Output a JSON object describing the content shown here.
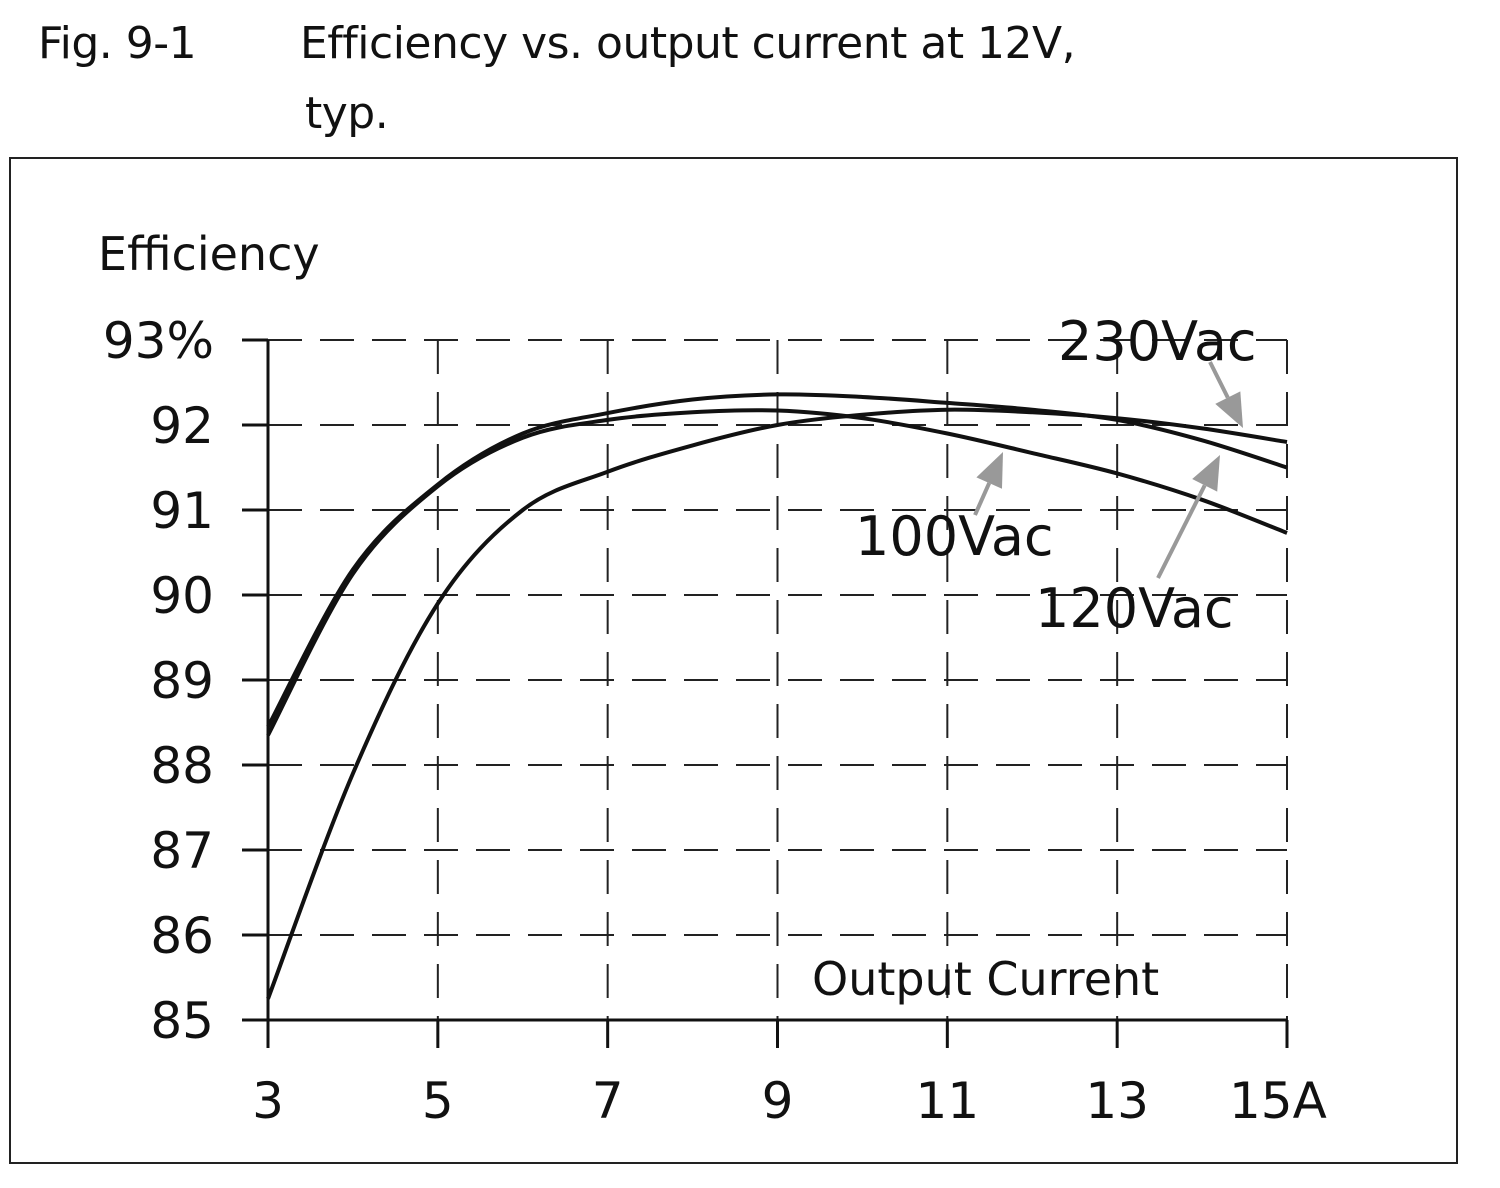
{
  "figure": {
    "number": "Fig. 9-1",
    "title_line1": "Efficiency vs. output current at 12V,",
    "title_line2": "typ."
  },
  "chart_data": {
    "type": "line",
    "title": "Efficiency vs. output current at 12V, typ.",
    "xlabel": "Output Current",
    "ylabel": "Efficiency",
    "xlim": [
      3,
      15
    ],
    "ylim": [
      85,
      93
    ],
    "x_ticks": [
      3,
      5,
      7,
      9,
      11,
      13,
      15
    ],
    "x_tick_labels": [
      "3",
      "5",
      "7",
      "9",
      "11",
      "13",
      "15A"
    ],
    "y_ticks": [
      93,
      92,
      91,
      90,
      89,
      88,
      87,
      86,
      85
    ],
    "y_tick_labels": [
      "93%",
      "92",
      "91",
      "90",
      "89",
      "88",
      "87",
      "86",
      "85"
    ],
    "grid": true,
    "grid_style": "dashed",
    "x": [
      3,
      4,
      5,
      6,
      7,
      8,
      9,
      10,
      11,
      12,
      13,
      14,
      15
    ],
    "series": [
      {
        "name": "230Vac",
        "values": [
          85.25,
          87.9,
          89.9,
          91.0,
          91.45,
          91.76,
          92.0,
          92.12,
          92.18,
          92.15,
          92.08,
          91.96,
          91.8
        ]
      },
      {
        "name": "120Vac",
        "values": [
          88.45,
          90.3,
          91.3,
          91.9,
          92.14,
          92.3,
          92.36,
          92.33,
          92.26,
          92.18,
          92.06,
          91.82,
          91.5
        ]
      },
      {
        "name": "100Vac",
        "values": [
          88.35,
          90.25,
          91.28,
          91.85,
          92.06,
          92.15,
          92.17,
          92.08,
          91.9,
          91.67,
          91.43,
          91.12,
          90.73
        ]
      }
    ],
    "annotation_color": "#999999",
    "line_color": "#111111"
  }
}
